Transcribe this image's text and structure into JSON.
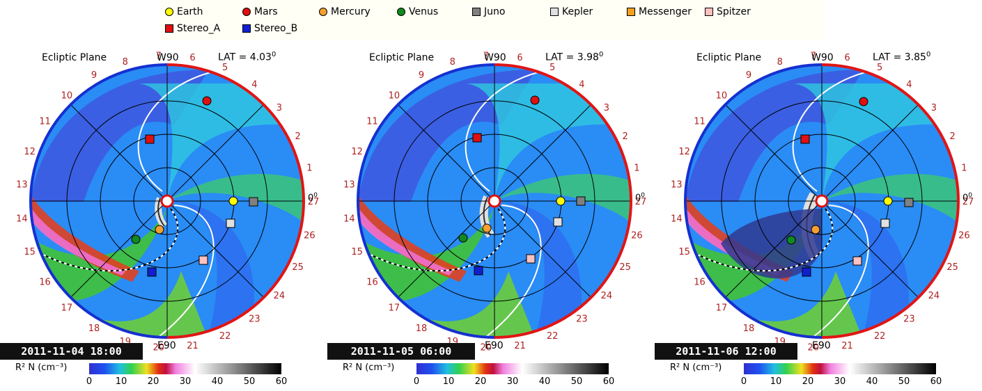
{
  "legend": [
    {
      "label": "Earth",
      "color": "#ffff00",
      "shape": "circle"
    },
    {
      "label": "Mars",
      "color": "#e01010",
      "shape": "circle"
    },
    {
      "label": "Mercury",
      "color": "#f5a030",
      "shape": "circle"
    },
    {
      "label": "Venus",
      "color": "#108a20",
      "shape": "circle"
    },
    {
      "label": "Juno",
      "color": "#808080",
      "shape": "square"
    },
    {
      "label": "Kepler",
      "color": "#e0e0e0",
      "shape": "square"
    },
    {
      "label": "Messenger",
      "color": "#f5a020",
      "shape": "square"
    },
    {
      "label": "Spitzer",
      "color": "#ffc0c0",
      "shape": "square"
    },
    {
      "label": "Stereo_A",
      "color": "#e01010",
      "shape": "square"
    },
    {
      "label": "Stereo_B",
      "color": "#1020d0",
      "shape": "square"
    }
  ],
  "common": {
    "title": "Ecliptic Plane",
    "w90": "W90",
    "e90": "E90",
    "zero_label": "0",
    "degree": "0",
    "colorbar_label": "R² N (cm⁻³)",
    "colorbar_ticks": [
      "0",
      "10",
      "20",
      "30",
      "40",
      "50",
      "60"
    ],
    "clock_numbers": [
      "1",
      "2",
      "3",
      "4",
      "5",
      "6",
      "7",
      "8",
      "9",
      "10",
      "11",
      "12",
      "13",
      "14",
      "15",
      "16",
      "17",
      "18",
      "19",
      "20",
      "21",
      "22",
      "23",
      "24",
      "25",
      "26",
      "27"
    ]
  },
  "panels": [
    {
      "date": "2011-11-04 18:00",
      "lat": "LAT = 4.03",
      "mark_variant": "a"
    },
    {
      "date": "2011-11-05 06:00",
      "lat": "LAT = 3.98",
      "mark_variant": "b"
    },
    {
      "date": "2011-11-06 12:00",
      "lat": "LAT = 3.85",
      "mark_variant": "c"
    }
  ],
  "colors": {
    "earth": "#ffff00",
    "mars": "#e01010",
    "mercury": "#f5a030",
    "venus": "#108a20",
    "juno": "#808080",
    "kepler": "#e0e0e0",
    "messenger": "#f5a020",
    "spitzer": "#ffc0c0",
    "stereo_a": "#e01010",
    "stereo_b": "#1020d0"
  }
}
